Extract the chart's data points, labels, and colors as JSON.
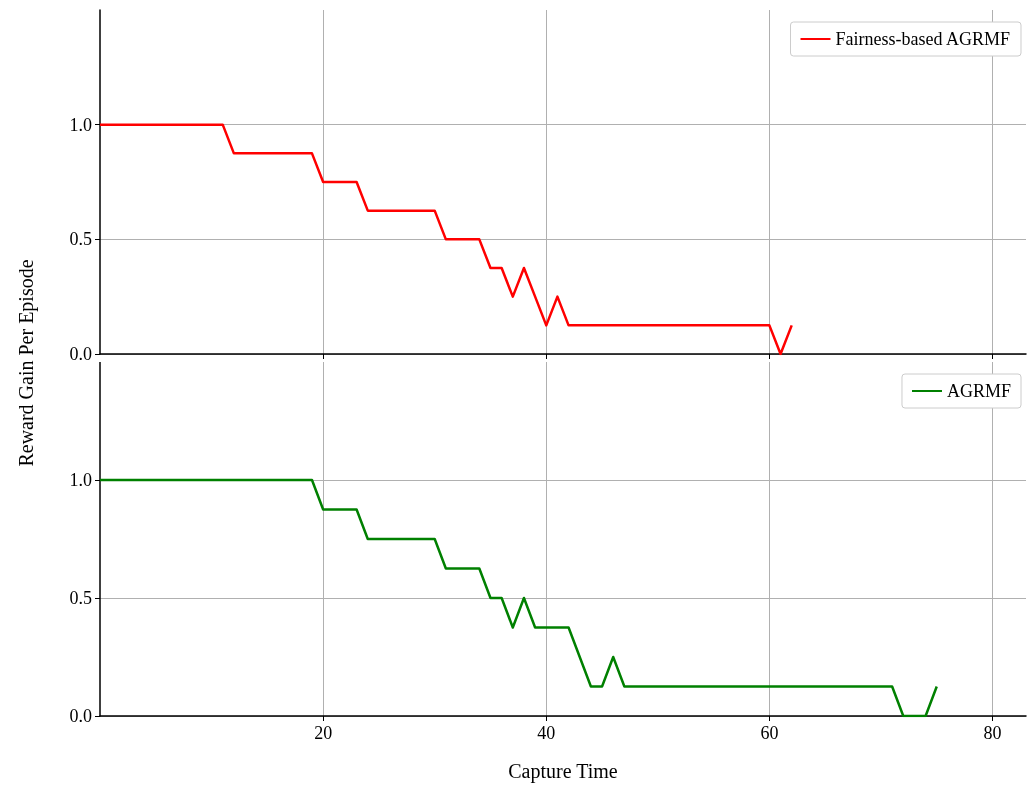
{
  "chart_data": [
    {
      "type": "line",
      "x": [
        0,
        11,
        12,
        19,
        20,
        23,
        24,
        30,
        31,
        34,
        35,
        36,
        37,
        38,
        39,
        40,
        41,
        42,
        60,
        61,
        62
      ],
      "series": [
        {
          "name": "Fairness-based AGRMF",
          "color": "#ff0000",
          "values": [
            1,
            1,
            0.875,
            0.875,
            0.75,
            0.75,
            0.625,
            0.625,
            0.5,
            0.5,
            0.375,
            0.375,
            0.25,
            0.375,
            0.25,
            0.125,
            0.25,
            0.125,
            0.125,
            0,
            0.125
          ]
        }
      ],
      "xlim": [
        0,
        83
      ],
      "xticks": [
        20,
        40,
        60,
        80
      ],
      "ylim": [
        0,
        1.5
      ],
      "yticks": [
        {
          "value": 0,
          "label": "0.0"
        },
        {
          "value": 0.5,
          "label": "0.5"
        },
        {
          "value": 1,
          "label": "1.0"
        }
      ],
      "grid": true,
      "legend": "top right",
      "tick_labels": "y"
    },
    {
      "type": "line",
      "x": [
        0,
        19,
        20,
        23,
        24,
        30,
        31,
        34,
        35,
        36,
        37,
        38,
        39,
        42,
        43,
        44,
        45,
        46,
        47,
        71,
        72,
        73,
        74,
        75
      ],
      "series": [
        {
          "name": "AGRMF",
          "color": "#008000",
          "values": [
            1,
            1,
            0.875,
            0.875,
            0.75,
            0.75,
            0.625,
            0.625,
            0.5,
            0.5,
            0.375,
            0.5,
            0.375,
            0.375,
            0.25,
            0.125,
            0.125,
            0.25,
            0.125,
            0.125,
            0,
            0,
            0,
            0.125
          ]
        }
      ],
      "xlim": [
        0,
        83
      ],
      "xticks": [
        20,
        40,
        60,
        80
      ],
      "ylim": [
        0,
        1.5
      ],
      "yticks": [
        {
          "value": 0,
          "label": "0.0"
        },
        {
          "value": 0.5,
          "label": "0.5"
        },
        {
          "value": 1,
          "label": "1.0"
        }
      ],
      "grid": true,
      "legend": "top right",
      "xlabel": "Capture Time",
      "ylabel": "Reward Gain Per Episode"
    }
  ]
}
